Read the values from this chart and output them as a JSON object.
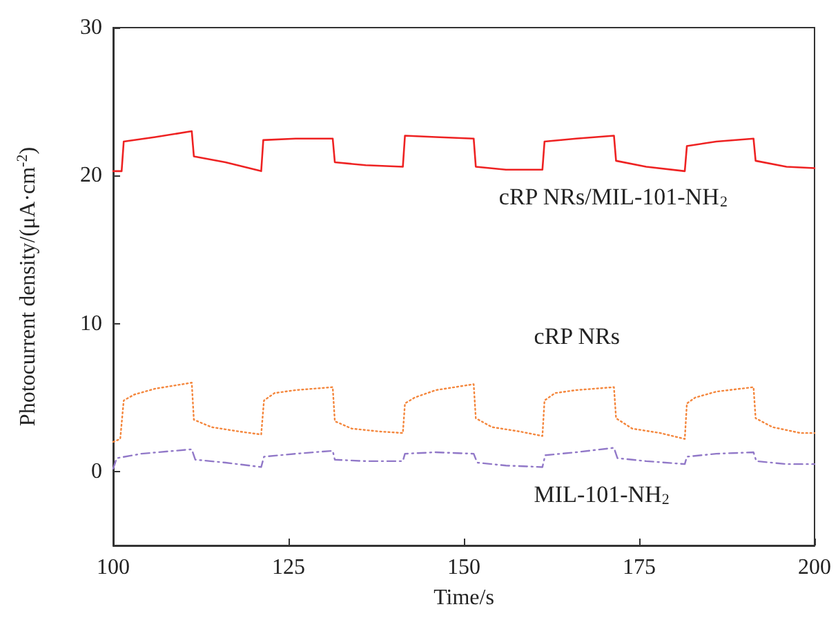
{
  "chart_data": {
    "type": "line",
    "xlabel": "Time/s",
    "ylabel": "Photocurrent density/(μA·cm$^{-2}$)",
    "xlim": [
      100,
      200
    ],
    "xticks": [
      100,
      125,
      150,
      175,
      200
    ],
    "ylim": [
      -5,
      30
    ],
    "yticks": [
      0,
      10,
      20,
      30
    ],
    "grid": false,
    "legend": false,
    "marker": "none",
    "series": [
      {
        "name": "cRP NRs/MIL-101-NH$_{2}$",
        "color": "#ee2222",
        "line_style": "solid",
        "x": [
          100,
          101.2,
          101.5,
          106,
          111.2,
          111.5,
          116,
          121.1,
          121.4,
          126,
          131.3,
          131.6,
          136,
          141.3,
          141.6,
          146,
          151.4,
          151.7,
          156,
          161.2,
          161.5,
          166,
          171.4,
          171.7,
          176,
          181.5,
          181.8,
          186,
          191.3,
          191.6,
          196,
          200
        ],
        "values": [
          20.3,
          20.3,
          22.3,
          22.6,
          23.0,
          21.3,
          20.9,
          20.3,
          22.4,
          22.5,
          22.5,
          20.9,
          20.7,
          20.6,
          22.7,
          22.6,
          22.5,
          20.6,
          20.4,
          20.4,
          22.3,
          22.5,
          22.7,
          21.0,
          20.6,
          20.3,
          22.0,
          22.3,
          22.5,
          21.0,
          20.6,
          20.5
        ]
      },
      {
        "name": "cRP NRs",
        "color": "#f4863c",
        "line_style": "dotted",
        "x": [
          100,
          101,
          101.5,
          103,
          106,
          111.2,
          111.5,
          114,
          118,
          121.1,
          121.5,
          123,
          126,
          131.3,
          131.6,
          134,
          138,
          141.3,
          141.6,
          143,
          146,
          151.4,
          151.7,
          154,
          158,
          161.2,
          161.5,
          163,
          166,
          171.4,
          171.7,
          174,
          178,
          181.5,
          181.8,
          183,
          186,
          191.3,
          191.6,
          194,
          198,
          200
        ],
        "values": [
          2.0,
          2.2,
          4.8,
          5.2,
          5.6,
          6.0,
          3.5,
          3.0,
          2.7,
          2.5,
          4.8,
          5.3,
          5.5,
          5.7,
          3.4,
          2.9,
          2.7,
          2.6,
          4.6,
          5.0,
          5.5,
          5.9,
          3.6,
          3.0,
          2.7,
          2.4,
          4.8,
          5.3,
          5.5,
          5.7,
          3.6,
          2.9,
          2.6,
          2.2,
          4.6,
          5.0,
          5.4,
          5.7,
          3.6,
          3.0,
          2.6,
          2.6
        ]
      },
      {
        "name": "MIL-101-NH$_{2}$",
        "color": "#9178c8",
        "line_style": "dashed",
        "x": [
          100,
          100.5,
          104,
          111.2,
          111.7,
          116,
          121.1,
          121.5,
          126,
          131.3,
          131.6,
          136,
          141.3,
          141.6,
          146,
          151.4,
          151.9,
          156,
          161.2,
          161.6,
          166,
          171.4,
          171.9,
          176,
          181.5,
          181.8,
          186,
          191.3,
          191.7,
          196,
          200
        ],
        "values": [
          0.2,
          0.9,
          1.2,
          1.5,
          0.8,
          0.6,
          0.3,
          1.0,
          1.2,
          1.4,
          0.8,
          0.7,
          0.7,
          1.2,
          1.3,
          1.2,
          0.6,
          0.4,
          0.3,
          1.1,
          1.3,
          1.6,
          0.9,
          0.7,
          0.5,
          1.0,
          1.2,
          1.3,
          0.7,
          0.5,
          0.5
        ]
      }
    ]
  }
}
